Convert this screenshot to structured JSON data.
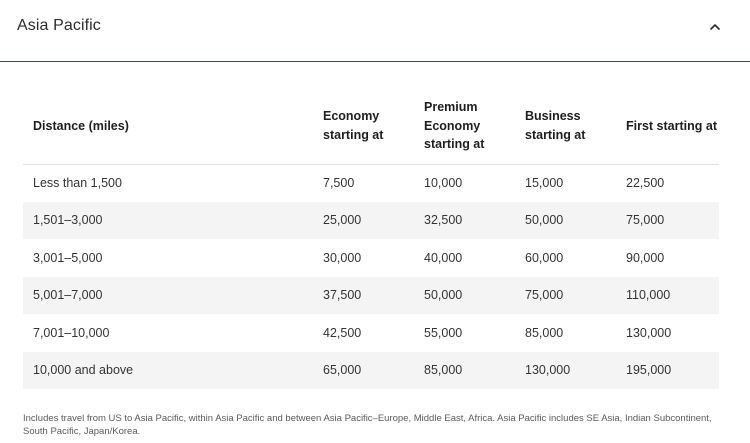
{
  "section": {
    "title": "Asia Pacific",
    "expanded": true,
    "toggle_icon": "chevron-up-icon"
  },
  "table": {
    "headers": [
      "Distance (miles)",
      "Economy starting at",
      "Premium Economy starting at",
      "Business starting at",
      "First starting at"
    ],
    "rows": [
      [
        "Less than 1,500",
        "7,500",
        "10,000",
        "15,000",
        "22,500"
      ],
      [
        "1,501–3,000",
        "25,000",
        "32,500",
        "50,000",
        "75,000"
      ],
      [
        "3,001–5,000",
        "30,000",
        "40,000",
        "60,000",
        "90,000"
      ],
      [
        "5,001–7,000",
        "37,500",
        "50,000",
        "75,000",
        "110,000"
      ],
      [
        "7,001–10,000",
        "42,500",
        "55,000",
        "85,000",
        "130,000"
      ],
      [
        "10,000 and above",
        "65,000",
        "85,000",
        "130,000",
        "195,000"
      ]
    ]
  },
  "footnote": "Includes travel from US to Asia Pacific, within Asia Pacific and between Asia Pacific–Europe, Middle East, Africa. Asia Pacific includes SE Asia, Indian Subcontinent, South Pacific, Japan/Korea.",
  "colors": {
    "divider": "#3a4a66",
    "stripe": "#f4f4f4"
  }
}
